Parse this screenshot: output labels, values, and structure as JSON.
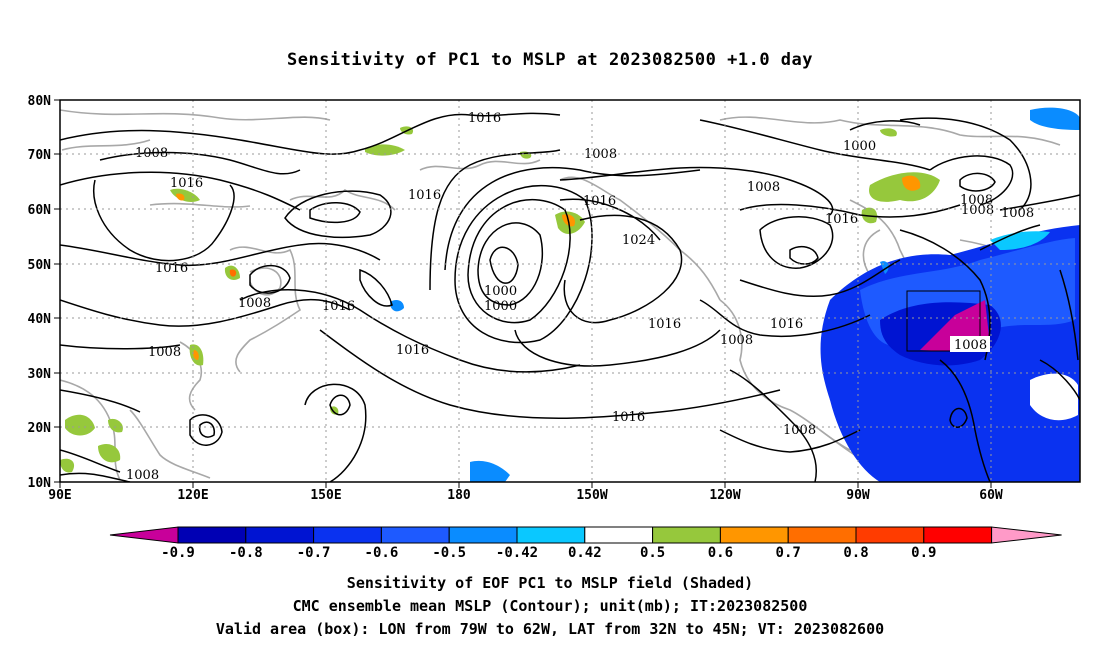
{
  "title": "Sensitivity of PC1 to MSLP at 2023082500 +1.0 day",
  "map": {
    "lon_labels": [
      "90E",
      "120E",
      "150E",
      "180",
      "150W",
      "120W",
      "90W",
      "60W"
    ],
    "lat_labels": [
      "80N",
      "70N",
      "60N",
      "50N",
      "40N",
      "30N",
      "20N",
      "10N"
    ],
    "contour_labels": [
      "1016",
      "1008",
      "1008",
      "1016",
      "1016",
      "1008",
      "1008",
      "1016",
      "1016",
      "1024",
      "1000",
      "1008",
      "1008",
      "1016",
      "1016",
      "1008",
      "1000",
      "1000",
      "1008",
      "1016",
      "1016",
      "1016",
      "1008",
      "1016",
      "1008",
      "1008"
    ],
    "valid_box": {
      "lon_w": "79W",
      "lon_e": "62W",
      "lat_s": "32N",
      "lat_n": "45N"
    }
  },
  "colorbar": {
    "tick_labels": [
      "-0.9",
      "-0.8",
      "-0.7",
      "-0.6",
      "-0.5",
      "-0.42",
      "0.42",
      "0.5",
      "0.6",
      "0.7",
      "0.8",
      "0.9"
    ],
    "colors": [
      "#c8009a",
      "#0000b4",
      "#0014d2",
      "#0a32f0",
      "#1e5aff",
      "#0a8cff",
      "#0ac8ff",
      "#ffffff",
      "#96c83c",
      "#ff9600",
      "#ff6e00",
      "#ff3c00",
      "#ff0000",
      "#ff9ac8"
    ]
  },
  "captions": {
    "line1": "Sensitivity of EOF PC1 to MSLP field (Shaded)",
    "line2": "CMC ensemble mean MSLP (Contour); unit(mb); IT:2023082500",
    "line3": "Valid area (box): LON from 79W to 62W, LAT from 32N to 45N; VT: 2023082600"
  }
}
